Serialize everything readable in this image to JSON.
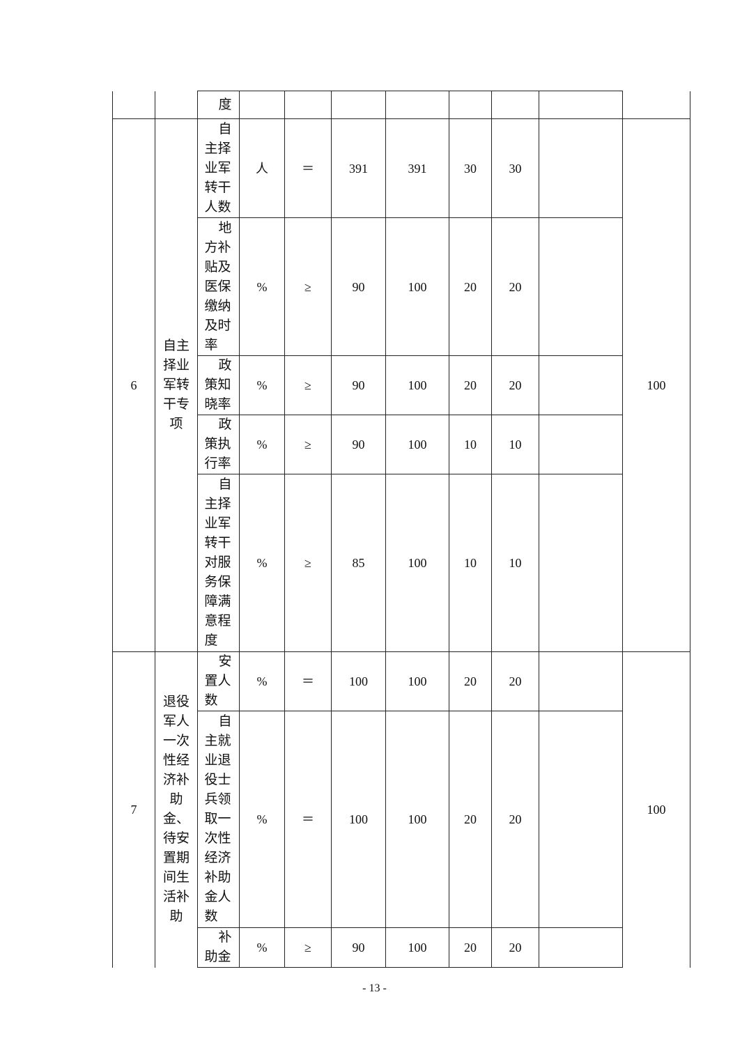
{
  "rows_continued": {
    "indicator": "度"
  },
  "groups": [
    {
      "no": "6",
      "category": "自主择业军转干专项",
      "score": "100",
      "items": [
        {
          "indicator": "自主择业军转干人数",
          "unit": "人",
          "op": "＝",
          "target": "391",
          "actual": "391",
          "weight": "30",
          "got": "30",
          "note": ""
        },
        {
          "indicator": "地方补贴及医保缴纳及时率",
          "unit": "%",
          "op": "≥",
          "target": "90",
          "actual": "100",
          "weight": "20",
          "got": "20",
          "note": ""
        },
        {
          "indicator": "政策知晓率",
          "unit": "%",
          "op": "≥",
          "target": "90",
          "actual": "100",
          "weight": "20",
          "got": "20",
          "note": ""
        },
        {
          "indicator": "政策执行率",
          "unit": "%",
          "op": "≥",
          "target": "90",
          "actual": "100",
          "weight": "10",
          "got": "10",
          "note": ""
        },
        {
          "indicator": "自主择业军转干对服务保障满意程度",
          "unit": "%",
          "op": "≥",
          "target": "85",
          "actual": "100",
          "weight": "10",
          "got": "10",
          "note": ""
        }
      ]
    },
    {
      "no": "7",
      "category": "退役军人一次性经济补助金、待安置期间生活补助",
      "score": "100",
      "items": [
        {
          "indicator": "安置人数",
          "unit": "%",
          "op": "＝",
          "target": "100",
          "actual": "100",
          "weight": "20",
          "got": "20",
          "note": ""
        },
        {
          "indicator": "自主就业退役士兵领取一次性经济补助金人数",
          "unit": "%",
          "op": "＝",
          "target": "100",
          "actual": "100",
          "weight": "20",
          "got": "20",
          "note": ""
        },
        {
          "indicator": "补助金",
          "unit": "%",
          "op": "≥",
          "target": "90",
          "actual": "100",
          "weight": "20",
          "got": "20",
          "note": ""
        }
      ]
    }
  ],
  "page_number": "- 13 -"
}
